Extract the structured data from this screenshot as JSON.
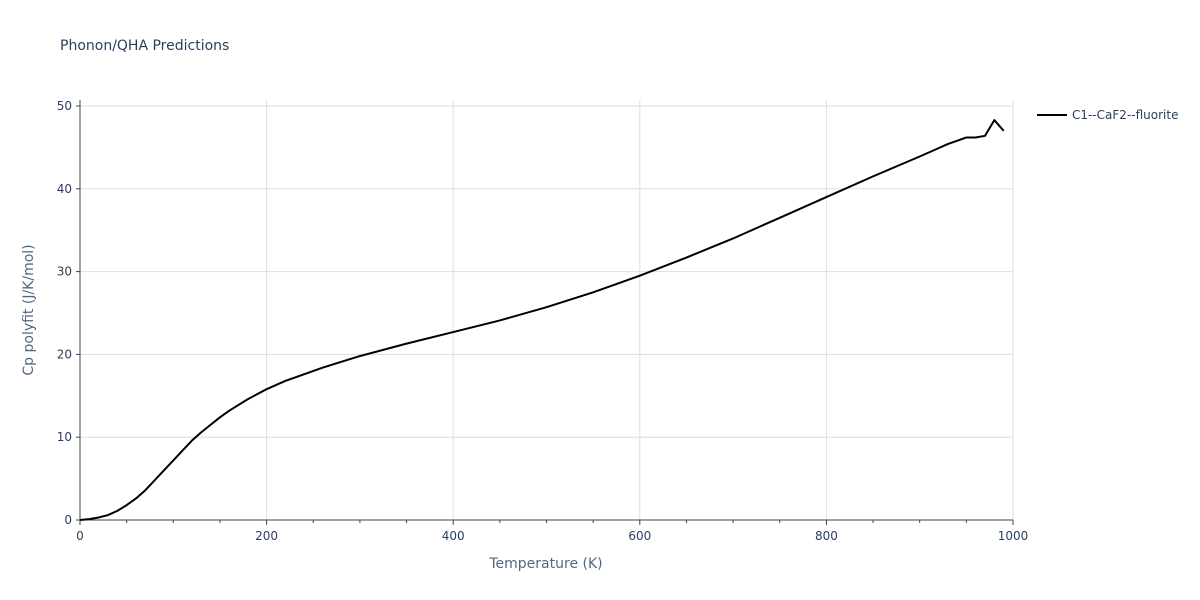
{
  "chart_data": {
    "type": "line",
    "title": "Phonon/QHA Predictions",
    "xlabel": "Temperature (K)",
    "ylabel": "Cp polyfit (J/K/mol)",
    "xlim": [
      0,
      1000
    ],
    "ylim": [
      0,
      50
    ],
    "xticks": [
      0,
      200,
      400,
      600,
      800,
      1000
    ],
    "yticks": [
      0,
      10,
      20,
      30,
      40,
      50
    ],
    "grid": true,
    "legend_position": "top-right",
    "series": [
      {
        "name": "C1--CaF2--fluorite",
        "color": "#000000",
        "x": [
          0,
          10,
          20,
          30,
          40,
          50,
          60,
          70,
          80,
          90,
          100,
          110,
          120,
          130,
          140,
          150,
          160,
          170,
          180,
          190,
          200,
          220,
          240,
          260,
          280,
          300,
          350,
          400,
          450,
          500,
          550,
          600,
          650,
          700,
          750,
          800,
          850,
          900,
          910,
          920,
          930,
          940,
          950,
          960,
          970,
          980,
          990
        ],
        "y": [
          0,
          0.1,
          0.3,
          0.6,
          1.1,
          1.8,
          2.6,
          3.6,
          4.8,
          6.0,
          7.2,
          8.4,
          9.6,
          10.6,
          11.5,
          12.4,
          13.2,
          13.9,
          14.6,
          15.2,
          15.8,
          16.8,
          17.6,
          18.4,
          19.1,
          19.8,
          21.3,
          22.7,
          24.1,
          25.7,
          27.5,
          29.5,
          31.7,
          34.0,
          36.5,
          39.0,
          41.5,
          43.9,
          44.4,
          44.9,
          45.4,
          45.8,
          46.2,
          46.2,
          46.4,
          48.3,
          47.0
        ]
      }
    ]
  }
}
